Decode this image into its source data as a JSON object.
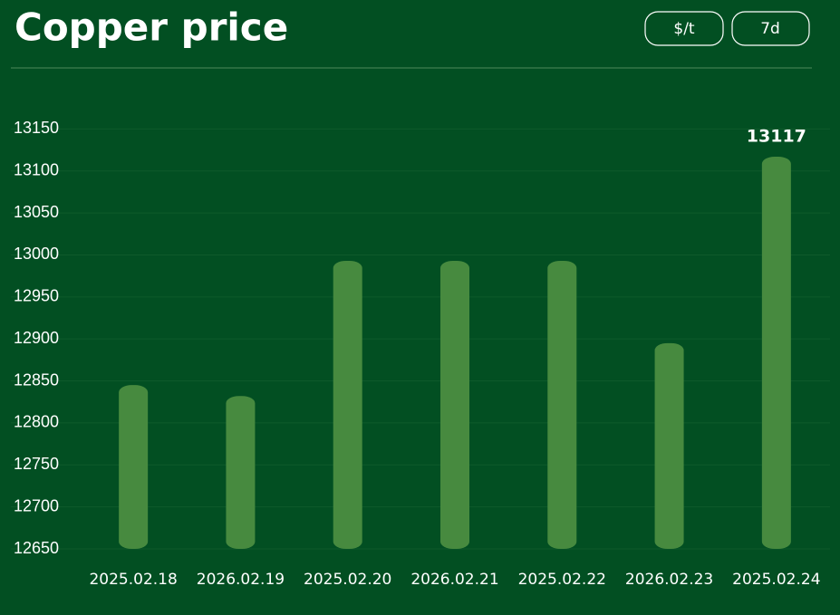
{
  "controls": [
    "$/t",
    "7d"
  ],
  "chart_data": {
    "type": "bar",
    "title": "Copper price",
    "categories": [
      "2025.02.18",
      "2026.02.19",
      "2025.02.20",
      "2026.02.21",
      "2025.02.22",
      "2026.02.23",
      "2025.02.24"
    ],
    "values": [
      12845,
      12832,
      12993,
      12993,
      12993,
      12895,
      13117
    ],
    "value_labels": [
      null,
      null,
      null,
      null,
      null,
      null,
      "13117"
    ],
    "color": "#478a3f",
    "ylim": [
      12650,
      13200
    ],
    "yticks": [
      12650,
      12700,
      12750,
      12800,
      12850,
      12900,
      12950,
      13000,
      13050,
      13100,
      13150
    ],
    "grid": true
  }
}
